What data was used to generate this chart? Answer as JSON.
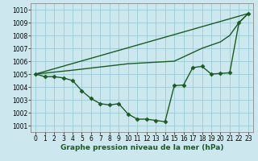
{
  "xlabel": "Graphe pression niveau de la mer (hPa)",
  "ylim": [
    1000.5,
    1010.5
  ],
  "xlim": [
    -0.5,
    23.5
  ],
  "yticks": [
    1001,
    1002,
    1003,
    1004,
    1005,
    1006,
    1007,
    1008,
    1009,
    1010
  ],
  "xticks": [
    0,
    1,
    2,
    3,
    4,
    5,
    6,
    7,
    8,
    9,
    10,
    11,
    12,
    13,
    14,
    15,
    16,
    17,
    18,
    19,
    20,
    21,
    22,
    23
  ],
  "bg_color": "#cce8ee",
  "grid_color": "#99ccd6",
  "line_color": "#1a5c20",
  "series1_x": [
    0,
    23
  ],
  "series1_y": [
    1005.0,
    1009.7
  ],
  "series2_x": [
    0,
    4,
    10,
    15,
    18,
    20,
    21,
    22,
    23
  ],
  "series2_y": [
    1005.0,
    1005.3,
    1005.8,
    1006.0,
    1007.0,
    1007.5,
    1008.0,
    1009.0,
    1009.7
  ],
  "series3_x": [
    0,
    1,
    2,
    3,
    4,
    5,
    6,
    7,
    8,
    9,
    10,
    11,
    12,
    13,
    14,
    15,
    16,
    17,
    18,
    19,
    20,
    21,
    22,
    23
  ],
  "series3_y": [
    1005.0,
    1004.8,
    1004.8,
    1004.7,
    1004.5,
    1003.7,
    1003.1,
    1002.7,
    1002.6,
    1002.7,
    1001.9,
    1001.5,
    1001.5,
    1001.4,
    1001.3,
    1004.1,
    1004.15,
    1005.5,
    1005.6,
    1005.0,
    1005.05,
    1005.1,
    1009.0,
    1009.7
  ],
  "marker": "D",
  "marker_size": 2.5,
  "line_width": 1.0,
  "tick_fontsize": 5.5,
  "xlabel_fontsize": 6.5
}
